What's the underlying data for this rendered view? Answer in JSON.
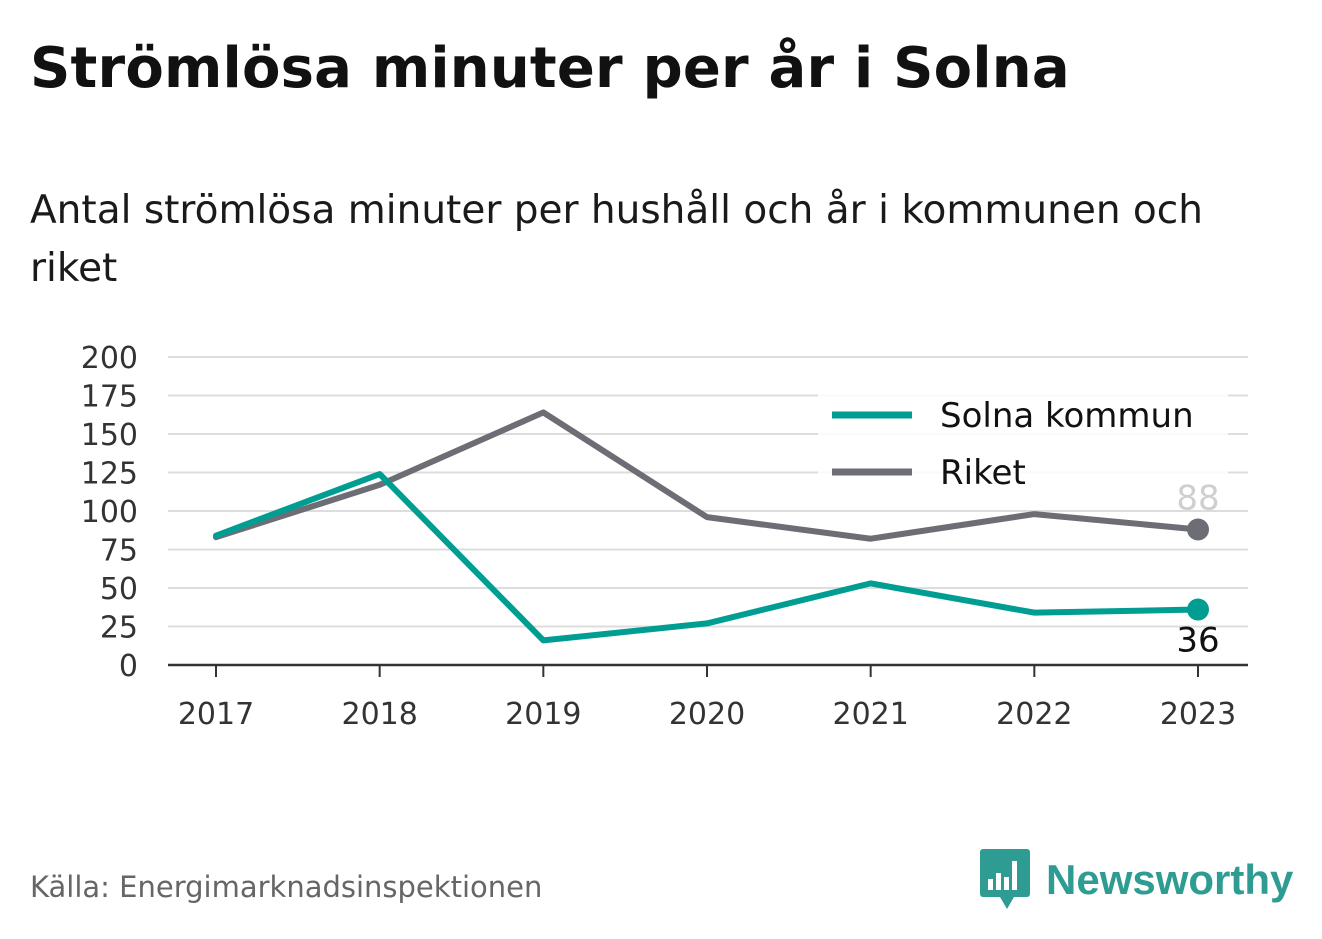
{
  "title": "Strömlösa minuter per år i Solna",
  "subtitle": "Antal strömlösa minuter per hushåll och år i kommunen och riket",
  "source": "Källa: Energimarknadsinspektionen",
  "brand": {
    "name": "Newsworthy",
    "icon": "bar-chart-speech-bubble-icon",
    "color": "#2e9c92"
  },
  "chart_data": {
    "type": "line",
    "x": [
      "2017",
      "2018",
      "2019",
      "2020",
      "2021",
      "2022",
      "2023"
    ],
    "ylim": [
      0,
      200
    ],
    "yticks": [
      0,
      25,
      50,
      75,
      100,
      125,
      150,
      175,
      200
    ],
    "grid": true,
    "legend_position": "top-right",
    "series": [
      {
        "name": "Solna kommun",
        "color": "#009e92",
        "values": [
          84,
          124,
          16,
          27,
          53,
          34,
          36
        ],
        "end_label": "36"
      },
      {
        "name": "Riket",
        "color": "#6d6d75",
        "values": [
          83,
          117,
          164,
          96,
          82,
          98,
          88
        ],
        "end_label": "88"
      }
    ]
  }
}
